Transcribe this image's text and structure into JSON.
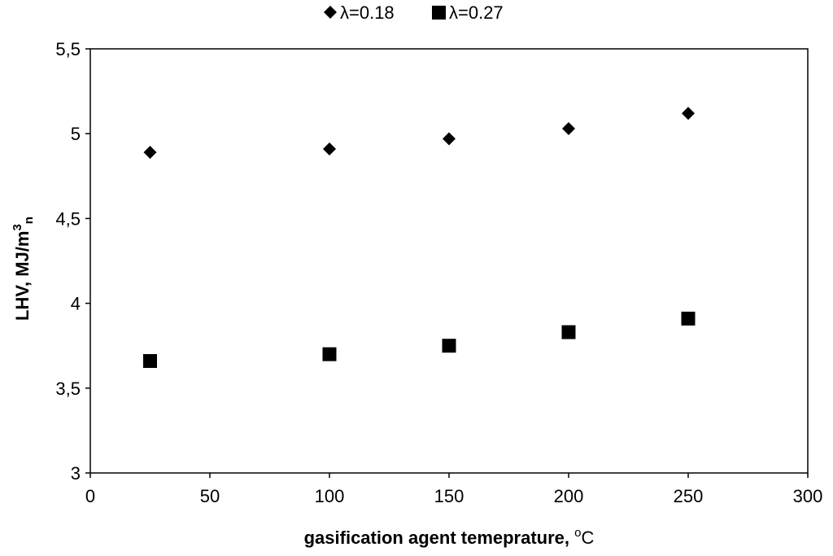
{
  "chart_data": {
    "type": "scatter",
    "title": "",
    "xlabel": "gasification agent temeprature, ",
    "xlabel_unit_sup": "o",
    "xlabel_unit": "C",
    "ylabel": "LHV, MJ/m",
    "ylabel_sup": "3",
    "ylabel_sub": "n",
    "xlim": [
      0,
      300
    ],
    "ylim": [
      3,
      5.5
    ],
    "x_ticks": [
      0,
      50,
      100,
      150,
      200,
      250,
      300
    ],
    "x_tick_labels": [
      "0",
      "50",
      "100",
      "150",
      "200",
      "250",
      "300"
    ],
    "y_ticks": [
      3,
      3.5,
      4,
      4.5,
      5,
      5.5
    ],
    "y_tick_labels": [
      "3",
      "3,5",
      "4",
      "4,5",
      "5",
      "5,5"
    ],
    "grid": false,
    "legend_position": "top-center",
    "series": [
      {
        "name": "λ=0.18",
        "marker": "diamond",
        "color": "#000000",
        "x": [
          25,
          100,
          150,
          200,
          250
        ],
        "y": [
          4.89,
          4.91,
          4.97,
          5.03,
          5.12
        ]
      },
      {
        "name": "λ=0.27",
        "marker": "square",
        "color": "#000000",
        "x": [
          25,
          100,
          150,
          200,
          250
        ],
        "y": [
          3.66,
          3.7,
          3.75,
          3.83,
          3.91
        ]
      }
    ]
  }
}
